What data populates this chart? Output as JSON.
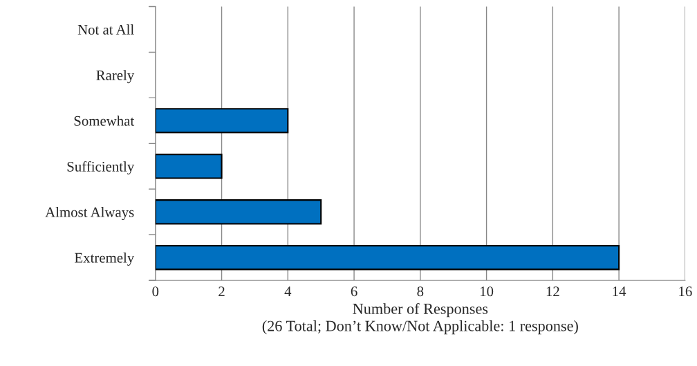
{
  "chart_data": {
    "type": "bar",
    "orientation": "horizontal",
    "categories": [
      "Not at All",
      "Rarely",
      "Somewhat",
      "Sufficiently",
      "Almost Always",
      "Extremely"
    ],
    "values": [
      0,
      0,
      4,
      2,
      5,
      14
    ],
    "color": "#0070c0",
    "xlabel": "Number of Responses\n(26 Total; Don’t Know/Not Applicable: 1 response)",
    "xlim": [
      0,
      16
    ],
    "xticks": [
      0,
      2,
      4,
      6,
      8,
      10,
      12,
      14,
      16
    ],
    "grid": "x",
    "legend": false
  }
}
